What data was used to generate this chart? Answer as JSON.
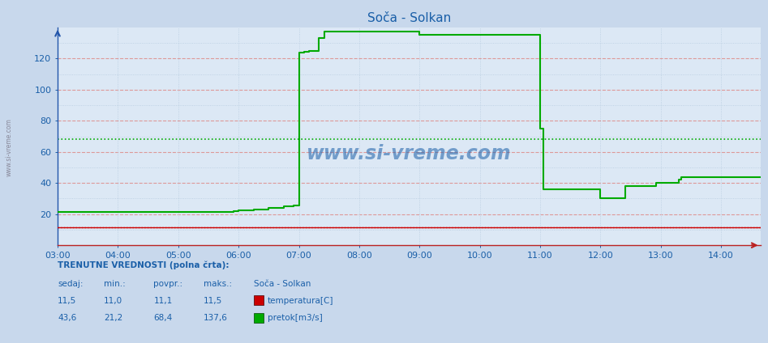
{
  "title": "Soča - Solkan",
  "title_color": "#1a5fa8",
  "fig_bg_color": "#c8d8ec",
  "plot_bg_color": "#dce8f5",
  "ylim": [
    0,
    140
  ],
  "yticks_major": [
    20,
    40,
    60,
    80,
    100,
    120
  ],
  "yticks_minor": [
    10,
    30,
    50,
    70,
    90,
    110,
    130
  ],
  "xtick_labels": [
    "03:00",
    "04:00",
    "05:00",
    "06:00",
    "07:00",
    "08:00",
    "09:00",
    "10:00",
    "11:00",
    "12:00",
    "13:00",
    "14:00"
  ],
  "xtick_positions": [
    3,
    4,
    5,
    6,
    7,
    8,
    9,
    10,
    11,
    12,
    13,
    14
  ],
  "xlim": [
    3.0,
    14.65
  ],
  "temp_color": "#cc0000",
  "pretok_color": "#00aa00",
  "temp_current": 11.5,
  "pretok_avg": 68.4,
  "major_hgrid_color": "#dd9999",
  "minor_hgrid_color": "#b8cce0",
  "vgrid_color": "#b8cce0",
  "watermark": "www.si-vreme.com",
  "left_label": "www.si-vreme.com",
  "info_label": "TRENUTNE VREDNOSTI (polna črta):",
  "col_headers": [
    "sedaj:",
    "min.:",
    "povpr.:",
    "maks.:",
    "Soča - Solkan"
  ],
  "temp_row": [
    "11,5",
    "11,0",
    "11,1",
    "11,5"
  ],
  "pretok_row": [
    "43,6",
    "21,2",
    "68,4",
    "137,6"
  ],
  "temp_label": "temperatura[C]",
  "pretok_label": "pretok[m3/s]",
  "pretok_x": [
    3.0,
    3.5,
    4.0,
    4.5,
    5.0,
    5.5,
    5.75,
    5.917,
    6.0,
    6.25,
    6.5,
    6.75,
    6.917,
    6.983,
    7.0,
    7.083,
    7.167,
    7.25,
    7.333,
    7.417,
    7.5,
    7.583,
    7.667,
    7.75,
    7.833,
    7.917,
    8.0,
    8.083,
    8.167,
    8.25,
    8.333,
    8.417,
    8.5,
    8.583,
    8.667,
    8.75,
    8.833,
    8.917,
    9.0,
    9.083,
    9.167,
    9.25,
    9.333,
    9.417,
    9.5,
    9.583,
    9.667,
    9.75,
    9.833,
    9.917,
    10.0,
    10.083,
    10.167,
    10.25,
    10.333,
    10.417,
    10.5,
    10.583,
    10.667,
    10.75,
    10.833,
    10.917,
    10.983,
    11.0,
    11.017,
    11.033,
    11.05,
    11.083,
    11.1,
    11.117,
    11.133,
    11.167,
    11.25,
    11.333,
    11.417,
    11.5,
    11.583,
    11.667,
    11.75,
    11.833,
    11.917,
    11.983,
    12.0,
    12.017,
    12.083,
    12.167,
    12.25,
    12.333,
    12.417,
    12.45,
    12.5,
    12.583,
    12.667,
    12.75,
    12.833,
    12.917,
    12.967,
    13.0,
    13.083,
    13.167,
    13.25,
    13.3,
    13.333,
    13.417,
    13.5,
    13.583,
    13.667,
    13.75,
    13.833,
    13.917,
    14.0,
    14.083,
    14.167,
    14.25,
    14.333,
    14.417,
    14.5,
    14.583,
    14.65
  ],
  "pretok_y": [
    21.2,
    21.2,
    21.2,
    21.2,
    21.2,
    21.2,
    21.5,
    22.0,
    22.5,
    23.0,
    24.0,
    25.0,
    25.5,
    25.5,
    124.0,
    124.5,
    125.0,
    125.0,
    133.0,
    137.6,
    137.6,
    137.6,
    137.6,
    137.6,
    137.6,
    137.6,
    137.6,
    137.6,
    137.6,
    137.6,
    137.6,
    137.6,
    137.6,
    137.6,
    137.6,
    137.6,
    137.6,
    137.6,
    135.5,
    135.5,
    135.5,
    135.5,
    135.5,
    135.5,
    135.5,
    135.5,
    135.5,
    135.5,
    135.5,
    135.5,
    135.5,
    135.5,
    135.5,
    135.5,
    135.5,
    135.5,
    135.5,
    135.5,
    135.5,
    135.5,
    135.5,
    135.5,
    135.5,
    75.0,
    75.0,
    75.0,
    36.0,
    36.0,
    36.0,
    36.0,
    36.0,
    36.0,
    36.0,
    36.0,
    36.0,
    36.0,
    36.0,
    36.0,
    36.0,
    36.0,
    36.0,
    36.0,
    30.0,
    30.0,
    30.0,
    30.0,
    30.0,
    30.0,
    38.0,
    38.0,
    38.0,
    38.0,
    38.0,
    38.0,
    38.0,
    40.0,
    40.0,
    40.0,
    40.0,
    40.0,
    40.0,
    42.0,
    43.6,
    43.6,
    43.6,
    43.6,
    43.6,
    43.6,
    43.6,
    43.6,
    43.6,
    43.6,
    43.6,
    43.6,
    43.6,
    43.6,
    43.6,
    43.6,
    43.6
  ]
}
